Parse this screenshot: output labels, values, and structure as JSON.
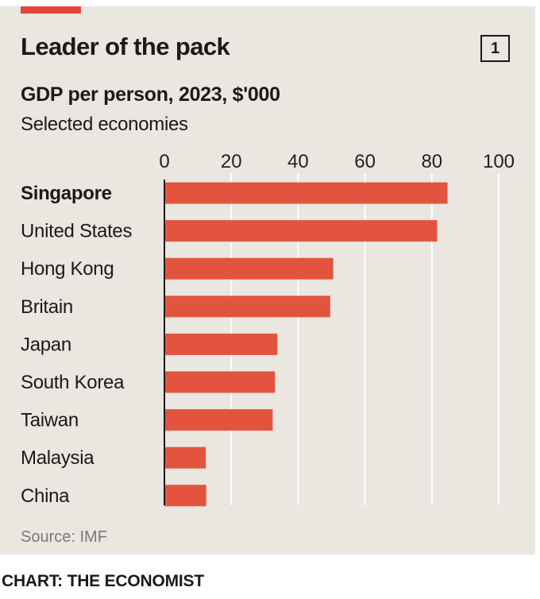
{
  "header": {
    "title": "Leader of the pack",
    "badge": "1",
    "subtitle": "GDP per person, 2023, $'000",
    "note": "Selected economies"
  },
  "footer": {
    "source": "Source: IMF",
    "credit": "CHART: THE ECONOMIST"
  },
  "colors": {
    "bar": "#e3543f",
    "accent": "#e3463b",
    "background": "#eae6e0",
    "grid": "#ffffff"
  },
  "chart_data": {
    "type": "bar",
    "orientation": "horizontal",
    "title": "Leader of the pack",
    "subtitle": "GDP per person, 2023, $'000",
    "categories": [
      "Singapore",
      "United States",
      "Hong Kong",
      "Britain",
      "Japan",
      "South Korea",
      "Taiwan",
      "Malaysia",
      "China"
    ],
    "highlight": "Singapore",
    "values": [
      84.7,
      81.6,
      50.5,
      49.6,
      33.8,
      33.1,
      32.4,
      12.4,
      12.5
    ],
    "xlim": [
      0,
      100
    ],
    "xticks": [
      0,
      20,
      40,
      60,
      80,
      100
    ],
    "grid": true
  }
}
